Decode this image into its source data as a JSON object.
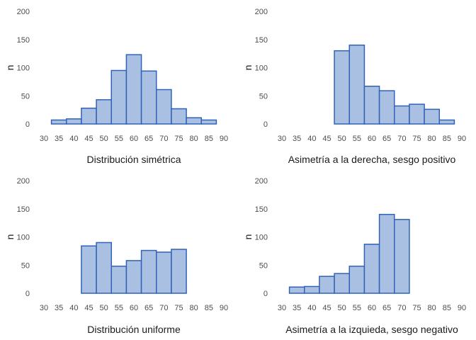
{
  "style": {
    "fill": "#aac0e2",
    "stroke": "#2f62b8"
  },
  "chart_data": [
    {
      "type": "bar",
      "xlabel": "Distribución simétrica",
      "ylabel": "n",
      "xlim": [
        30,
        90
      ],
      "ylim": [
        0,
        200
      ],
      "xticks": [
        30,
        35,
        40,
        45,
        50,
        55,
        60,
        65,
        70,
        75,
        80,
        85,
        90
      ],
      "yticks": [
        0,
        50,
        100,
        150,
        200
      ],
      "bin_edges": [
        32.5,
        37.5,
        42.5,
        47.5,
        52.5,
        57.5,
        62.5,
        67.5,
        72.5,
        77.5,
        82.5,
        87.5
      ],
      "values": [
        7,
        9,
        28,
        43,
        95,
        123,
        94,
        61,
        27,
        11,
        7
      ]
    },
    {
      "type": "bar",
      "xlabel": "Asimetría a la derecha, sesgo positivo",
      "ylabel": "n",
      "xlim": [
        30,
        90
      ],
      "ylim": [
        0,
        200
      ],
      "xticks": [
        30,
        35,
        40,
        45,
        50,
        55,
        60,
        65,
        70,
        75,
        80,
        85,
        90
      ],
      "yticks": [
        0,
        50,
        100,
        150,
        200
      ],
      "bin_edges": [
        32.5,
        37.5,
        42.5,
        47.5,
        52.5,
        57.5,
        62.5,
        67.5,
        72.5,
        77.5,
        82.5,
        87.5
      ],
      "values": [
        0,
        0,
        0,
        130,
        140,
        67,
        59,
        32,
        35,
        26,
        7
      ]
    },
    {
      "type": "bar",
      "xlabel": "Distribución uniforme",
      "ylabel": "n",
      "xlim": [
        30,
        90
      ],
      "ylim": [
        0,
        200
      ],
      "xticks": [
        30,
        35,
        40,
        45,
        50,
        55,
        60,
        65,
        70,
        75,
        80,
        85,
        90
      ],
      "yticks": [
        0,
        50,
        100,
        150,
        200
      ],
      "bin_edges": [
        32.5,
        37.5,
        42.5,
        47.5,
        52.5,
        57.5,
        62.5,
        67.5,
        72.5,
        77.5,
        82.5,
        87.5
      ],
      "values": [
        0,
        0,
        84,
        90,
        48,
        58,
        76,
        73,
        78,
        0,
        0
      ]
    },
    {
      "type": "bar",
      "xlabel": "Asimetría a la izquieda, sesgo negativo",
      "ylabel": "n",
      "xlim": [
        30,
        90
      ],
      "ylim": [
        0,
        200
      ],
      "xticks": [
        30,
        35,
        40,
        45,
        50,
        55,
        60,
        65,
        70,
        75,
        80,
        85,
        90
      ],
      "yticks": [
        0,
        50,
        100,
        150,
        200
      ],
      "bin_edges": [
        32.5,
        37.5,
        42.5,
        47.5,
        52.5,
        57.5,
        62.5,
        67.5,
        72.5,
        77.5,
        82.5,
        87.5
      ],
      "values": [
        11,
        12,
        30,
        35,
        48,
        87,
        140,
        131,
        0,
        0,
        0
      ]
    }
  ]
}
